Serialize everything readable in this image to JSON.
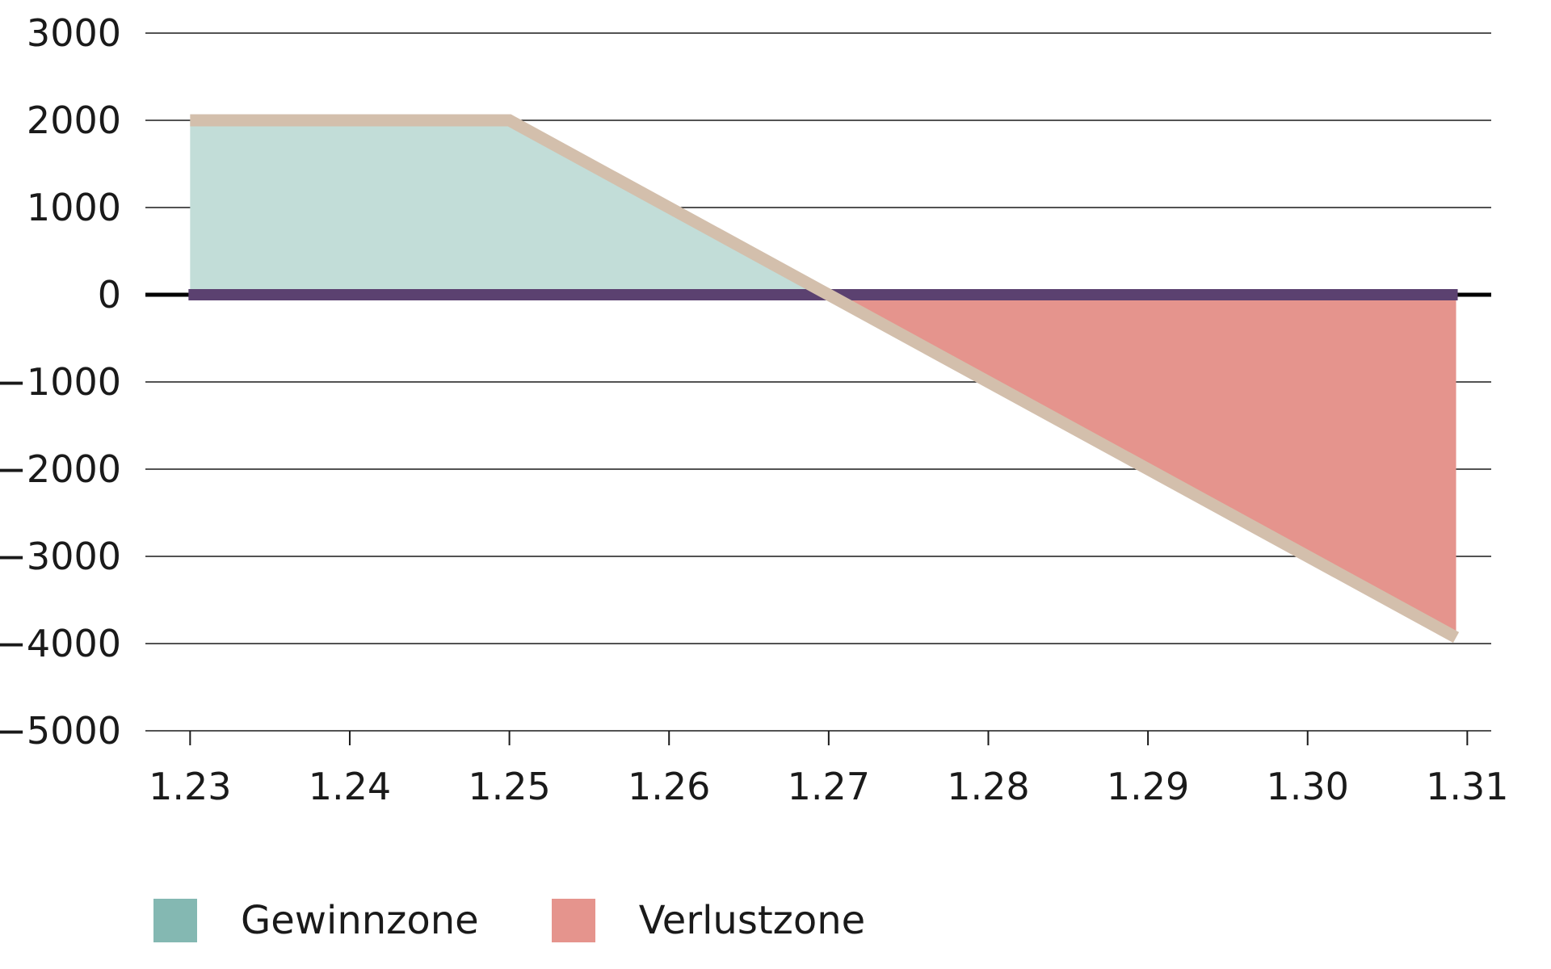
{
  "chart_data": {
    "type": "area",
    "x": [
      1.23,
      1.25,
      1.27,
      1.31
    ],
    "y": [
      2000,
      2000,
      0,
      -4000
    ],
    "xticks": [
      "1.23",
      "1.24",
      "1.25",
      "1.26",
      "1.27",
      "1.28",
      "1.29",
      "1.30",
      "1.31"
    ],
    "yticks": [
      "3000",
      "2000",
      "1000",
      "0",
      "−1000",
      "−2000",
      "−3000",
      "−4000",
      "−5000"
    ],
    "xlim": [
      1.2272,
      1.3115
    ],
    "ylim": [
      -5000,
      3000
    ],
    "data_xrange": [
      1.23,
      1.3093
    ],
    "grid": true,
    "legend_position": "bottom-left",
    "legend": [
      {
        "label": "Gewinnzone",
        "color": "#84b8b2"
      },
      {
        "label": "Verlustzone",
        "color": "#e5948d"
      }
    ],
    "colors": {
      "profit_fill": "#c2ddd8",
      "loss_fill": "#e5948d",
      "payoff_line": "#d3bfac",
      "zero_bar": "#5b4170",
      "axis": "#000000",
      "grid": "#1a1a1a"
    }
  }
}
